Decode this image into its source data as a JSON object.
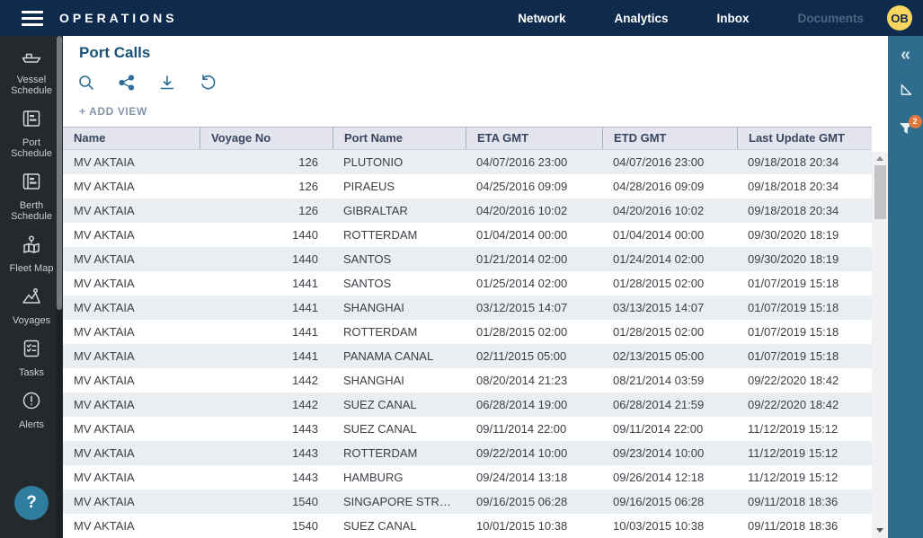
{
  "navbar": {
    "brand": "OPERATIONS",
    "items": [
      {
        "label": "Network"
      },
      {
        "label": "Analytics"
      },
      {
        "label": "Inbox"
      },
      {
        "label": "Documents"
      }
    ],
    "avatar_initials": "OB"
  },
  "sidebar": {
    "items": [
      {
        "icon": "vessel-schedule-icon",
        "label": "Vessel Schedule"
      },
      {
        "icon": "port-schedule-icon",
        "label": "Port Schedule"
      },
      {
        "icon": "berth-schedule-icon",
        "label": "Berth Schedule"
      },
      {
        "icon": "fleet-map-icon",
        "label": "Fleet Map"
      },
      {
        "icon": "voyages-icon",
        "label": "Voyages"
      },
      {
        "icon": "tasks-icon",
        "label": "Tasks"
      },
      {
        "icon": "alerts-icon",
        "label": "Alerts"
      }
    ],
    "help_label": "?"
  },
  "main": {
    "title": "Port Calls",
    "toolbar": {
      "icons": [
        "search-icon",
        "share-icon",
        "download-icon",
        "undo-icon"
      ]
    },
    "add_view_label": "+ ADD VIEW"
  },
  "table": {
    "columns": [
      {
        "label": "Name",
        "align": "left"
      },
      {
        "label": "Voyage No",
        "align": "right"
      },
      {
        "label": "Port Name",
        "align": "left"
      },
      {
        "label": "ETA GMT",
        "align": "left"
      },
      {
        "label": "ETD GMT",
        "align": "left"
      },
      {
        "label": "Last Update GMT",
        "align": "left"
      }
    ],
    "rows": [
      [
        "MV AKTAIA",
        "126",
        "PLUTONIO",
        "04/07/2016 23:00",
        "04/07/2016 23:00",
        "09/18/2018 20:34"
      ],
      [
        "MV AKTAIA",
        "126",
        "PIRAEUS",
        "04/25/2016 09:09",
        "04/28/2016 09:09",
        "09/18/2018 20:34"
      ],
      [
        "MV AKTAIA",
        "126",
        "GIBRALTAR",
        "04/20/2016 10:02",
        "04/20/2016 10:02",
        "09/18/2018 20:34"
      ],
      [
        "MV AKTAIA",
        "1440",
        "ROTTERDAM",
        "01/04/2014 00:00",
        "01/04/2014 00:00",
        "09/30/2020 18:19"
      ],
      [
        "MV AKTAIA",
        "1440",
        "SANTOS",
        "01/21/2014 02:00",
        "01/24/2014 02:00",
        "09/30/2020 18:19"
      ],
      [
        "MV AKTAIA",
        "1441",
        "SANTOS",
        "01/25/2014 02:00",
        "01/28/2015 02:00",
        "01/07/2019 15:18"
      ],
      [
        "MV AKTAIA",
        "1441",
        "SHANGHAI",
        "03/12/2015 14:07",
        "03/13/2015 14:07",
        "01/07/2019 15:18"
      ],
      [
        "MV AKTAIA",
        "1441",
        "ROTTERDAM",
        "01/28/2015 02:00",
        "01/28/2015 02:00",
        "01/07/2019 15:18"
      ],
      [
        "MV AKTAIA",
        "1441",
        "PANAMA CANAL",
        "02/11/2015 05:00",
        "02/13/2015 05:00",
        "01/07/2019 15:18"
      ],
      [
        "MV AKTAIA",
        "1442",
        "SHANGHAI",
        "08/20/2014 21:23",
        "08/21/2014 03:59",
        "09/22/2020 18:42"
      ],
      [
        "MV AKTAIA",
        "1442",
        "SUEZ CANAL",
        "06/28/2014 19:00",
        "06/28/2014 21:59",
        "09/22/2020 18:42"
      ],
      [
        "MV AKTAIA",
        "1443",
        "SUEZ CANAL",
        "09/11/2014 22:00",
        "09/11/2014 22:00",
        "11/12/2019 15:12"
      ],
      [
        "MV AKTAIA",
        "1443",
        "ROTTERDAM",
        "09/22/2014 10:00",
        "09/23/2014 10:00",
        "11/12/2019 15:12"
      ],
      [
        "MV AKTAIA",
        "1443",
        "HAMBURG",
        "09/24/2014 13:18",
        "09/26/2014 12:18",
        "11/12/2019 15:12"
      ],
      [
        "MV AKTAIA",
        "1540",
        "SINGAPORE STR…",
        "09/16/2015 06:28",
        "09/16/2015 06:28",
        "09/11/2018 18:36"
      ],
      [
        "MV AKTAIA",
        "1540",
        "SUEZ CANAL",
        "10/01/2015 10:38",
        "10/03/2015 10:38",
        "09/11/2018 18:36"
      ]
    ]
  },
  "right_panel": {
    "collapse_icon": "«",
    "icons": [
      "collapse-icon",
      "pointer-tool-icon",
      "filter-icon"
    ],
    "filter_badge": "2"
  },
  "colors": {
    "navbar_bg": "#0e2b4e",
    "sidebar_bg": "#24292d",
    "panel_teal": "#2e6d8e",
    "badge_orange": "#e0773c",
    "avatar_yellow": "#f6d65e",
    "title_blue": "#1a5278",
    "row_stripe": "#e9eef3",
    "header_bg": "#e3e4ee"
  }
}
